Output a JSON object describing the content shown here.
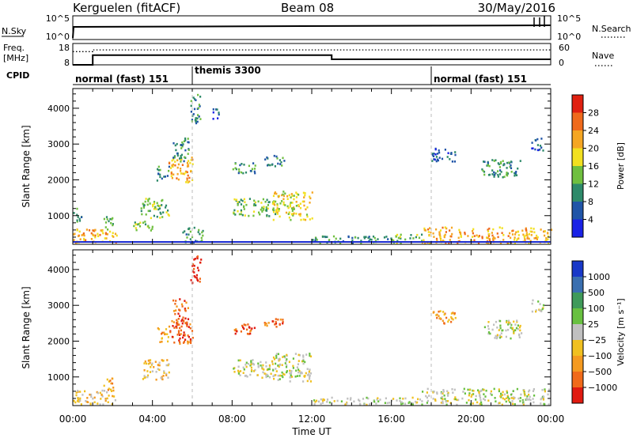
{
  "header": {
    "station": "Kerguelen (fitACF)",
    "beam": "Beam 08",
    "date": "30/May/2016"
  },
  "nsky_panel": {
    "left_label": "N.Sky",
    "right_label": "N.Search",
    "right_label_style": "dotted",
    "left_ticks": [
      "10^5",
      "10^0"
    ],
    "right_ticks": [
      "10^5",
      "10^0"
    ]
  },
  "freq_panel": {
    "left_label_line1": "Freq.",
    "left_label_line2": "[MHz]",
    "right_label": "Nave",
    "right_label_style": "dotted",
    "left_ticks": [
      "18",
      "8"
    ],
    "right_ticks": [
      "60",
      "0"
    ],
    "freq_steps": [
      {
        "t": 0.0,
        "mhz": 8.0
      },
      {
        "t": 1.0,
        "mhz": 12.5
      },
      {
        "t": 13.0,
        "mhz": 10.6
      }
    ],
    "nave_steps": [
      {
        "t": 0.0,
        "value": 37
      },
      {
        "t": 1.0,
        "value": 42
      },
      {
        "t": 13.0,
        "value": 42
      }
    ]
  },
  "cpid": {
    "label": "CPID",
    "segments": [
      {
        "start": 0.0,
        "end": 6.0,
        "name": "normal (fast) 151"
      },
      {
        "start": 6.0,
        "end": 18.0,
        "name": "themis 3300"
      },
      {
        "start": 18.0,
        "end": 24.0,
        "name": "normal (fast) 151"
      }
    ]
  },
  "time_axis": {
    "title": "Time UT",
    "ticks": [
      "00:00",
      "04:00",
      "08:00",
      "12:00",
      "16:00",
      "20:00",
      "00:00"
    ],
    "range_hours": [
      0,
      24
    ]
  },
  "colorbars": {
    "power": {
      "title": "Power [dB]",
      "labels": [
        "4",
        "8",
        "12",
        "16",
        "20",
        "24",
        "28"
      ],
      "colors": [
        "#1a22e6",
        "#2055a8",
        "#2e8a6a",
        "#6fbf3f",
        "#f2e020",
        "#f5a623",
        "#ef6a1c",
        "#e02010"
      ]
    },
    "velocity": {
      "title": "Velocity [m s⁻¹]",
      "labels": [
        "1000",
        "500",
        "100",
        "25",
        "−25",
        "−100",
        "−500",
        "−1000"
      ],
      "colors": [
        "#1838c8",
        "#3a6fb0",
        "#3f9a5a",
        "#68c040",
        "#c0c0c0",
        "#f0c020",
        "#f49a20",
        "#f06a1a",
        "#e01a10"
      ]
    }
  },
  "chart_data": [
    {
      "type": "heatmap",
      "quantity": "power",
      "ylabel": "Slant Range [km]",
      "xlabel": "",
      "ylim": [
        200,
        4550
      ],
      "yticks": [
        "1000",
        "2000",
        "3000",
        "4000"
      ],
      "xlim": [
        0,
        24
      ],
      "regions": [
        {
          "t0": 0.0,
          "t1": 2.2,
          "r0": 250,
          "r1": 650,
          "level": 5
        },
        {
          "t0": 0.0,
          "t1": 0.4,
          "r0": 850,
          "r1": 1250,
          "level": 2
        },
        {
          "t0": 1.5,
          "t1": 2.0,
          "r0": 600,
          "r1": 1000,
          "level": 3
        },
        {
          "t0": 3.0,
          "t1": 4.0,
          "r0": 600,
          "r1": 900,
          "level": 3
        },
        {
          "t0": 3.4,
          "t1": 4.8,
          "r0": 950,
          "r1": 1500,
          "level": 3
        },
        {
          "t0": 4.2,
          "t1": 4.8,
          "r0": 2000,
          "r1": 2400,
          "level": 2
        },
        {
          "t0": 4.8,
          "t1": 6.0,
          "r0": 1950,
          "r1": 2650,
          "level": 5
        },
        {
          "t0": 5.0,
          "t1": 5.8,
          "r0": 2500,
          "r1": 3200,
          "level": 2
        },
        {
          "t0": 5.9,
          "t1": 6.4,
          "r0": 3600,
          "r1": 4450,
          "level": 2
        },
        {
          "t0": 7.0,
          "t1": 7.3,
          "r0": 3600,
          "r1": 4000,
          "level": 1
        },
        {
          "t0": 8.0,
          "t1": 9.2,
          "r0": 2200,
          "r1": 2500,
          "level": 2
        },
        {
          "t0": 9.6,
          "t1": 10.6,
          "r0": 2400,
          "r1": 2700,
          "level": 2
        },
        {
          "t0": 8.0,
          "t1": 10.2,
          "r0": 1000,
          "r1": 1500,
          "level": 3
        },
        {
          "t0": 10.0,
          "t1": 12.0,
          "r0": 900,
          "r1": 1700,
          "level": 4
        },
        {
          "t0": 5.5,
          "t1": 6.5,
          "r0": 250,
          "r1": 700,
          "level": 2
        },
        {
          "t0": 12.0,
          "t1": 16.0,
          "r0": 250,
          "r1": 450,
          "level": 2
        },
        {
          "t0": 16.0,
          "t1": 17.5,
          "r0": 250,
          "r1": 500,
          "level": 3
        },
        {
          "t0": 17.5,
          "t1": 24.0,
          "r0": 250,
          "r1": 700,
          "level": 5
        },
        {
          "t0": 18.0,
          "t1": 19.2,
          "r0": 2500,
          "r1": 2900,
          "level": 1
        },
        {
          "t0": 20.5,
          "t1": 22.5,
          "r0": 2100,
          "r1": 2600,
          "level": 2
        },
        {
          "t0": 23.0,
          "t1": 23.6,
          "r0": 2800,
          "r1": 3200,
          "level": 1
        }
      ]
    },
    {
      "type": "heatmap",
      "quantity": "velocity",
      "ylabel": "Slant Range [km]",
      "xlabel": "Time UT",
      "ylim": [
        200,
        4550
      ],
      "yticks": [
        "1000",
        "2000",
        "3000",
        "4000"
      ],
      "xlim": [
        0,
        24
      ],
      "regions": [
        {
          "t0": 0.0,
          "t1": 2.2,
          "r0": 250,
          "r1": 650,
          "level": 5
        },
        {
          "t0": 1.5,
          "t1": 2.0,
          "r0": 600,
          "r1": 1000,
          "level": 6
        },
        {
          "t0": 3.4,
          "t1": 4.8,
          "r0": 950,
          "r1": 1500,
          "level": 5
        },
        {
          "t0": 4.2,
          "t1": 4.8,
          "r0": 2000,
          "r1": 2400,
          "level": 6
        },
        {
          "t0": 4.8,
          "t1": 6.0,
          "r0": 1950,
          "r1": 2650,
          "level": 7
        },
        {
          "t0": 5.0,
          "t1": 5.8,
          "r0": 2500,
          "r1": 3200,
          "level": 7
        },
        {
          "t0": 5.9,
          "t1": 6.4,
          "r0": 3600,
          "r1": 4450,
          "level": 8
        },
        {
          "t0": 8.0,
          "t1": 9.2,
          "r0": 2200,
          "r1": 2500,
          "level": 7
        },
        {
          "t0": 9.6,
          "t1": 10.6,
          "r0": 2400,
          "r1": 2700,
          "level": 7
        },
        {
          "t0": 8.0,
          "t1": 10.2,
          "r0": 1000,
          "r1": 1500,
          "level": 4
        },
        {
          "t0": 10.0,
          "t1": 12.0,
          "r0": 900,
          "r1": 1700,
          "level": 4
        },
        {
          "t0": 12.0,
          "t1": 16.0,
          "r0": 250,
          "r1": 450,
          "level": 4
        },
        {
          "t0": 16.0,
          "t1": 17.5,
          "r0": 250,
          "r1": 500,
          "level": 4
        },
        {
          "t0": 17.5,
          "t1": 24.0,
          "r0": 250,
          "r1": 700,
          "level": 4
        },
        {
          "t0": 18.0,
          "t1": 19.2,
          "r0": 2500,
          "r1": 2900,
          "level": 6
        },
        {
          "t0": 20.5,
          "t1": 22.5,
          "r0": 2100,
          "r1": 2600,
          "level": 4
        },
        {
          "t0": 23.0,
          "t1": 23.6,
          "r0": 2800,
          "r1": 3200,
          "level": 4
        }
      ]
    }
  ]
}
